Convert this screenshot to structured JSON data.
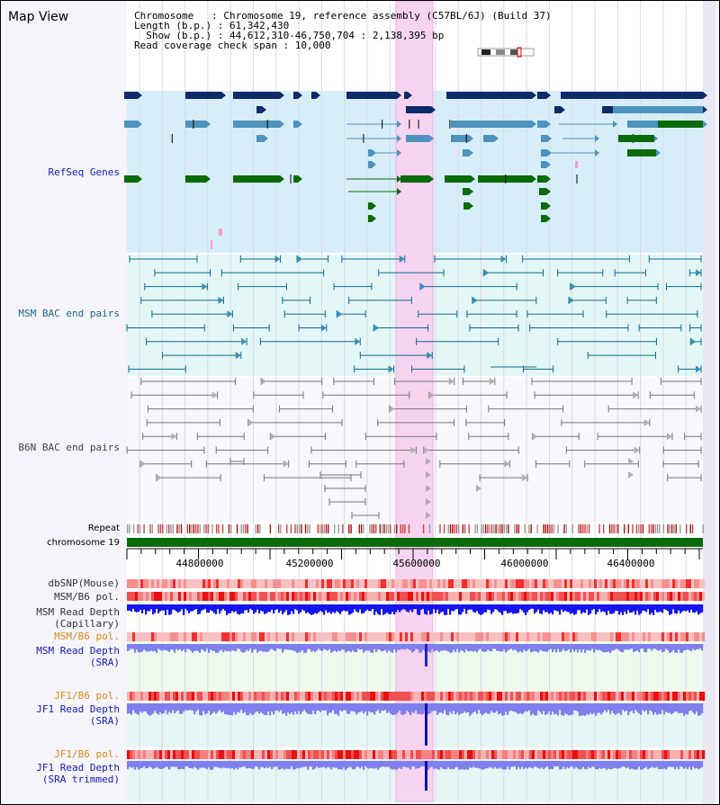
{
  "page_title": "Map View",
  "info": {
    "chromosome_line": "Chromosome   : Chromosome 19, reference assembly (C57BL/6J) (Build 37)",
    "length_line": "Length (b.p.) : 61,342,430",
    "show_line": "  Show (b.p.) : 44,612,310-46,750,704 : 2,138,395 bp",
    "span_line": "Read coverage check span : 10,000"
  },
  "labels": {
    "refseq": "RefSeq Genes",
    "msm_bac": "MSM BAC end pairs",
    "b6n_bac": "B6N BAC end pairs",
    "repeat": "Repeat",
    "chromosome": "chromosome 19",
    "dbsnp": "dbSNP(Mouse)",
    "msm_b6_pol": "MSM/B6 pol.",
    "msm_rd_cap_1": "MSM Read Depth",
    "msm_rd_cap_2": "(Capillary)",
    "msm_b6_pol_2": "MSM/B6 pol.",
    "msm_rd_sra_1": "MSM Read Depth",
    "msm_rd_sra_2": "(SRA)",
    "jf1_b6_pol": "JF1/B6 pol.",
    "jf1_rd_sra_1": "JF1 Read Depth",
    "jf1_rd_sra_2": "(SRA)",
    "jf1_b6_pol_2": "JF1/B6 pol.",
    "jf1_rd_trim_1": "JF1 Read Depth",
    "jf1_rd_trim_2": "(SRA trimmed)"
  },
  "ruler_ticks": [
    "44800000",
    "45200000",
    "45600000",
    "46000000",
    "46400000"
  ],
  "colors": {
    "refseq_bg": "#d7eef8",
    "msm_bg": "#e4f7f7",
    "highlight": "#f6d4f0",
    "refseq_dark": "#0b2b6b",
    "refseq_mid": "#4d93bd",
    "refseq_green": "#0b6b0b",
    "msm_line": "#0e6a8a",
    "b6n_line": "#777777",
    "depth_blue": "#1515ee",
    "depth_lav": "#7f7fee",
    "label_blue": "#1919b4",
    "label_teal": "#22668a",
    "label_orange": "#e08a10",
    "chromosome_green": "#0b6b0b"
  }
}
